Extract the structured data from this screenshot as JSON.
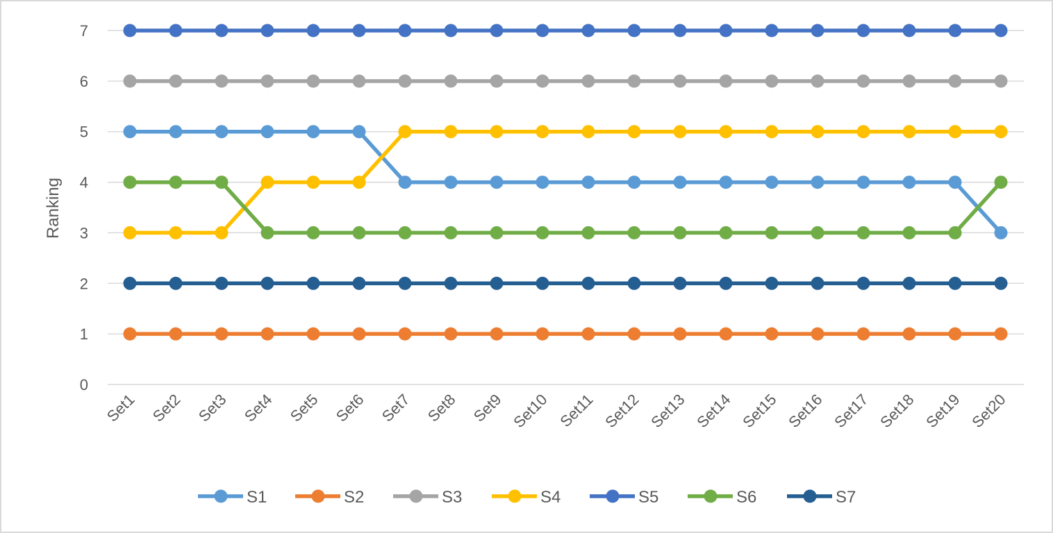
{
  "chart_data": {
    "type": "line",
    "title": "",
    "xlabel": "",
    "ylabel": "Ranking",
    "ylim": [
      0,
      7
    ],
    "yticks": [
      0,
      1,
      2,
      3,
      4,
      5,
      6,
      7
    ],
    "grid": true,
    "legend_position": "bottom",
    "categories": [
      "Set1",
      "Set2",
      "Set3",
      "Set4",
      "Set5",
      "Set6",
      "Set7",
      "Set8",
      "Set9",
      "Set10",
      "Set11",
      "Set12",
      "Set13",
      "Set14",
      "Set15",
      "Set16",
      "Set17",
      "Set18",
      "Set19",
      "Set20"
    ],
    "series": [
      {
        "name": "S1",
        "color": "#5B9BD5",
        "values": [
          5,
          5,
          5,
          5,
          5,
          5,
          4,
          4,
          4,
          4,
          4,
          4,
          4,
          4,
          4,
          4,
          4,
          4,
          4,
          3
        ]
      },
      {
        "name": "S2",
        "color": "#ED7D31",
        "values": [
          1,
          1,
          1,
          1,
          1,
          1,
          1,
          1,
          1,
          1,
          1,
          1,
          1,
          1,
          1,
          1,
          1,
          1,
          1,
          1
        ]
      },
      {
        "name": "S3",
        "color": "#A5A5A5",
        "values": [
          6,
          6,
          6,
          6,
          6,
          6,
          6,
          6,
          6,
          6,
          6,
          6,
          6,
          6,
          6,
          6,
          6,
          6,
          6,
          6
        ]
      },
      {
        "name": "S4",
        "color": "#FFC000",
        "values": [
          3,
          3,
          3,
          4,
          4,
          4,
          5,
          5,
          5,
          5,
          5,
          5,
          5,
          5,
          5,
          5,
          5,
          5,
          5,
          5
        ]
      },
      {
        "name": "S5",
        "color": "#4472C4",
        "values": [
          7,
          7,
          7,
          7,
          7,
          7,
          7,
          7,
          7,
          7,
          7,
          7,
          7,
          7,
          7,
          7,
          7,
          7,
          7,
          7
        ]
      },
      {
        "name": "S6",
        "color": "#70AD47",
        "values": [
          4,
          4,
          4,
          3,
          3,
          3,
          3,
          3,
          3,
          3,
          3,
          3,
          3,
          3,
          3,
          3,
          3,
          3,
          3,
          4
        ]
      },
      {
        "name": "S7",
        "color": "#255E91",
        "values": [
          2,
          2,
          2,
          2,
          2,
          2,
          2,
          2,
          2,
          2,
          2,
          2,
          2,
          2,
          2,
          2,
          2,
          2,
          2,
          2
        ]
      }
    ]
  }
}
